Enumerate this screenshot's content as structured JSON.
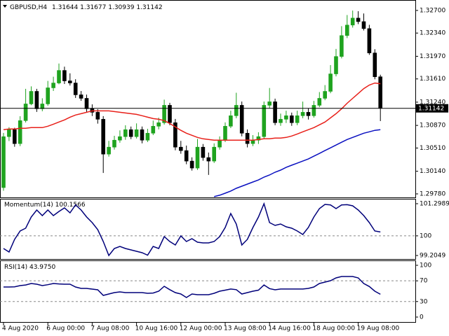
{
  "chart_data": [
    {
      "type": "candlestick",
      "symbol": "GBPUSD,H4",
      "categories": [
        "4 Aug 2020",
        null,
        null,
        null,
        null,
        null,
        null,
        null,
        "6 Aug 00:00",
        null,
        null,
        null,
        null,
        null,
        null,
        null,
        "7 Aug 08:00",
        null,
        null,
        null,
        null,
        null,
        null,
        null,
        "10 Aug 16:00",
        null,
        null,
        null,
        null,
        null,
        null,
        null,
        "12 Aug 00:00",
        null,
        null,
        null,
        null,
        null,
        null,
        null,
        "13 Aug 08:00",
        null,
        null,
        null,
        null,
        null,
        null,
        null,
        "14 Aug 16:00",
        null,
        null,
        null,
        null,
        null,
        null,
        null,
        "18 Aug 00:00",
        null,
        null,
        null,
        null,
        null,
        null,
        null,
        "19 Aug 08:00",
        null,
        null,
        null,
        null
      ],
      "open": [
        1.2988,
        1.30691,
        1.30802,
        1.3058,
        1.30946,
        1.31212,
        1.31412,
        1.31135,
        1.31212,
        1.31468,
        1.31545,
        1.31745,
        1.31579,
        1.31545,
        1.31357,
        1.31301,
        1.31135,
        1.31079,
        1.30968,
        1.30413,
        1.30524,
        1.30635,
        1.30691,
        1.30802,
        1.30691,
        1.30802,
        1.30635,
        1.30746,
        1.30857,
        1.30913,
        1.3119,
        1.30913,
        1.30524,
        1.30469,
        1.30302,
        1.30191,
        1.30524,
        1.30358,
        1.30302,
        1.30524,
        1.30635,
        1.30857,
        1.31024,
        1.3119,
        1.30746,
        1.3058,
        1.30635,
        1.30691,
        1.3119,
        1.31246,
        1.30913,
        1.30968,
        1.31024,
        1.30913,
        1.31024,
        1.31079,
        1.31024,
        1.3119,
        1.31301,
        1.31412,
        1.3169,
        1.31967,
        1.323,
        1.32467,
        1.32578,
        1.32522,
        1.32411,
        1.32023,
        1.31644
      ],
      "high": [
        1.30751,
        1.30842,
        1.30832,
        1.31016,
        1.31452,
        1.31492,
        1.31452,
        1.31302,
        1.31578,
        1.31645,
        1.31855,
        1.31805,
        1.31699,
        1.31605,
        1.31417,
        1.31361,
        1.31205,
        1.31129,
        1.31018,
        1.30624,
        1.30705,
        1.30791,
        1.30872,
        1.30852,
        1.30902,
        1.30852,
        1.30816,
        1.30947,
        1.30993,
        1.3128,
        1.3123,
        1.30973,
        1.30624,
        1.30549,
        1.30362,
        1.30654,
        1.30574,
        1.30438,
        1.30584,
        1.30695,
        1.30917,
        1.31104,
        1.3139,
        1.3125,
        1.30806,
        1.30715,
        1.30761,
        1.3125,
        1.31466,
        1.31296,
        1.31058,
        1.31104,
        1.31074,
        1.31104,
        1.31249,
        1.31139,
        1.3126,
        1.31401,
        1.31512,
        1.3183,
        1.32087,
        1.3245,
        1.32627,
        1.32698,
        1.32688,
        1.32652,
        1.32471,
        1.32083,
        1.31677
      ],
      "low": [
        1.2983,
        1.30621,
        1.3053,
        1.3054,
        1.30916,
        1.31192,
        1.31085,
        1.31095,
        1.31182,
        1.31418,
        1.31525,
        1.31529,
        1.31505,
        1.31307,
        1.31261,
        1.31085,
        1.31019,
        1.30898,
        1.30113,
        1.30373,
        1.30484,
        1.30595,
        1.30641,
        1.30651,
        1.30661,
        1.30585,
        1.30605,
        1.30716,
        1.30807,
        1.30883,
        1.30873,
        1.30474,
        1.30419,
        1.30252,
        1.30151,
        1.30161,
        1.30308,
        1.30082,
        1.30272,
        1.30484,
        1.30605,
        1.30827,
        1.30984,
        1.30696,
        1.3052,
        1.3054,
        1.30575,
        1.30661,
        1.3114,
        1.30873,
        1.30863,
        1.30908,
        1.30863,
        1.30873,
        1.30984,
        1.30964,
        1.30994,
        1.3116,
        1.31271,
        1.31382,
        1.3165,
        1.31937,
        1.3226,
        1.32427,
        1.32482,
        1.32381,
        1.31993,
        1.31604,
        1.30939
      ],
      "close": [
        1.30691,
        1.30802,
        1.3058,
        1.30946,
        1.31212,
        1.31412,
        1.31135,
        1.31212,
        1.31468,
        1.31545,
        1.31745,
        1.31579,
        1.31545,
        1.31357,
        1.31301,
        1.31135,
        1.31079,
        1.30968,
        1.30413,
        1.30524,
        1.30635,
        1.30691,
        1.30802,
        1.30691,
        1.30802,
        1.30635,
        1.30746,
        1.30857,
        1.30913,
        1.3119,
        1.30913,
        1.30524,
        1.30469,
        1.30302,
        1.30191,
        1.30524,
        1.30358,
        1.30302,
        1.30524,
        1.30635,
        1.30857,
        1.31024,
        1.3119,
        1.30746,
        1.3058,
        1.30635,
        1.30691,
        1.3119,
        1.31246,
        1.30913,
        1.30968,
        1.31024,
        1.30913,
        1.31024,
        1.31079,
        1.31024,
        1.3119,
        1.31301,
        1.31412,
        1.3169,
        1.31967,
        1.323,
        1.32467,
        1.32578,
        1.32522,
        1.32411,
        1.32023,
        1.31644,
        1.31142
      ],
      "up_color": "#1fa31f",
      "down_color": "#000000",
      "current_price_line": true,
      "series": [
        {
          "color": "#e8201a",
          "values": [
            1.30802,
            1.30813,
            1.30813,
            1.30824,
            1.30824,
            1.30835,
            1.30835,
            1.30835,
            1.30857,
            1.3089,
            1.30924,
            1.30957,
            1.31001,
            1.31035,
            1.31057,
            1.31079,
            1.31101,
            1.31101,
            1.31101,
            1.31101,
            1.3109,
            1.31079,
            1.31068,
            1.31057,
            1.31046,
            1.31024,
            1.31001,
            1.30979,
            1.30968,
            1.30946,
            1.30901,
            1.30846,
            1.30791,
            1.30746,
            1.30712,
            1.30679,
            1.30657,
            1.30646,
            1.30635,
            1.30635,
            1.30635,
            1.30635,
            1.30635,
            1.30635,
            1.30635,
            1.30635,
            1.30646,
            1.30657,
            1.30657,
            1.30668,
            1.30668,
            1.30679,
            1.30701,
            1.30734,
            1.30768,
            1.30802,
            1.30835,
            1.30879,
            1.30924,
            1.3099,
            1.31057,
            1.31135,
            1.31223,
            1.31301,
            1.31378,
            1.31456,
            1.31512,
            1.31545,
            1.31534
          ]
        },
        {
          "color": "#0a10c0",
          "values": [
            null,
            null,
            null,
            null,
            null,
            null,
            null,
            null,
            null,
            null,
            null,
            null,
            null,
            null,
            null,
            null,
            null,
            null,
            null,
            null,
            null,
            null,
            null,
            null,
            null,
            null,
            null,
            null,
            null,
            null,
            null,
            null,
            null,
            null,
            null,
            null,
            null,
            null,
            1.29736,
            1.29758,
            1.29791,
            1.29825,
            1.29869,
            1.29902,
            1.29936,
            1.29969,
            1.30002,
            1.30047,
            1.3008,
            1.30125,
            1.30158,
            1.30202,
            1.30236,
            1.30269,
            1.30302,
            1.30336,
            1.3038,
            1.30424,
            1.30469,
            1.30513,
            1.30557,
            1.30602,
            1.30646,
            1.30679,
            1.30712,
            1.30746,
            1.30768,
            1.30791,
            1.30802
          ]
        }
      ],
      "ylim": [
        1.29724,
        1.32855
      ],
      "yticks": [
        {
          "value": 1.327,
          "label": "1.32700"
        },
        {
          "value": 1.3234,
          "label": "1.32340"
        },
        {
          "value": 1.3197,
          "label": "1.31970"
        },
        {
          "value": 1.3161,
          "label": "1.31610"
        },
        {
          "value": 1.3124,
          "label": "1.31240"
        },
        {
          "value": 1.3087,
          "label": "1.30870"
        },
        {
          "value": 1.3051,
          "label": "1.30510"
        },
        {
          "value": 1.3014,
          "label": "1.30140"
        },
        {
          "value": 1.2978,
          "label": "1.29780"
        }
      ]
    },
    {
      "type": "line",
      "title": "Momentum(14)",
      "series": [
        {
          "color": "#00007a",
          "values": [
            99.488,
            99.347,
            99.856,
            100.196,
            100.309,
            100.762,
            101.045,
            100.818,
            101.045,
            100.818,
            100.985,
            101.129,
            100.931,
            101.25,
            101.045,
            100.762,
            100.535,
            100.252,
            99.771,
            99.2049,
            99.488,
            99.573,
            99.488,
            99.432,
            99.375,
            99.318,
            99.22,
            99.573,
            99.488,
            99.969,
            99.771,
            99.63,
            99.998,
            99.771,
            99.884,
            99.743,
            99.715,
            99.715,
            99.771,
            99.969,
            100.337,
            100.903,
            100.479,
            99.63,
            99.856,
            100.337,
            100.762,
            101.2989,
            100.535,
            100.422,
            100.479,
            100.365,
            100.309,
            100.196,
            100.054,
            100.337,
            100.762,
            101.101,
            101.271,
            101.25,
            101.101,
            101.25,
            101.26,
            101.214,
            101.045,
            100.818,
            100.535,
            100.196,
            100.1566
          ]
        }
      ],
      "levels": [
        100
      ],
      "ylim": [
        99.063,
        101.469
      ],
      "yticks": [
        101.2989,
        100,
        99.2049
      ]
    },
    {
      "type": "line",
      "title": "RSI(14)",
      "last_label": "43.9750",
      "series": [
        {
          "color": "#00007a",
          "values": [
            58.1,
            58.1,
            58.5,
            60.8,
            62.0,
            64.9,
            63.5,
            60.8,
            62.5,
            64.9,
            64.0,
            63.5,
            63.5,
            58.1,
            55.4,
            55.4,
            54.0,
            52.7,
            41.9,
            44.6,
            47.3,
            48.6,
            47.3,
            47.3,
            47.3,
            47.3,
            45.9,
            46.5,
            50.0,
            59.5,
            53.0,
            47.3,
            44.6,
            37.8,
            44.6,
            43.2,
            43.2,
            43.2,
            45.9,
            50.0,
            52.0,
            54.1,
            53.0,
            44.6,
            47.3,
            50.0,
            52.0,
            62.0,
            55.0,
            52.7,
            54.1,
            54.1,
            54.1,
            54.1,
            54.1,
            55.4,
            58.1,
            64.9,
            67.6,
            70.3,
            75.7,
            78.4,
            78.4,
            78.4,
            75.7,
            64.9,
            59.0,
            50.0,
            43.975
          ]
        }
      ],
      "levels": [
        70,
        30
      ],
      "ylim": [
        -9.5,
        108.1
      ],
      "yticks": [
        100,
        70,
        30,
        0
      ]
    }
  ]
}
